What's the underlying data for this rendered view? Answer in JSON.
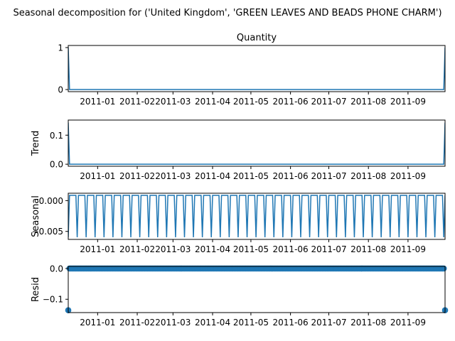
{
  "chart_data": {
    "type": "line",
    "suptitle": "Seasonal decomposition for ('United Kingdom', 'GREEN LEAVES AND BEADS PHONE CHARM')",
    "x_range": [
      "2010-12-09",
      "2011-09-30"
    ],
    "x_tick_labels": [
      "2011-01",
      "2011-02",
      "2011-03",
      "2011-04",
      "2011-05",
      "2011-06",
      "2011-07",
      "2011-08",
      "2011-09"
    ],
    "x_tick_dates": [
      "2011-01-01",
      "2011-02-01",
      "2011-03-01",
      "2011-04-01",
      "2011-05-01",
      "2011-06-01",
      "2011-07-01",
      "2011-08-01",
      "2011-09-01"
    ],
    "line_color": "#1f77b4",
    "panels": [
      {
        "name": "observed",
        "title": "Quantity",
        "ylabel": "",
        "kind": "line",
        "ylim": [
          -0.05,
          1.05
        ],
        "yticks": [
          0,
          1
        ],
        "ytick_labels": [
          "0",
          "1"
        ],
        "description": "1 at first and last date, 0 elsewhere",
        "first_value": 1,
        "middle_value": 0,
        "last_value": 1
      },
      {
        "name": "trend",
        "title": "",
        "ylabel": "Trend",
        "kind": "line",
        "ylim": [
          -0.007,
          0.152
        ],
        "yticks": [
          0.0,
          0.1
        ],
        "ytick_labels": [
          "0.0",
          "0.1"
        ],
        "first_value": 0.143,
        "middle_value": 0.0,
        "last_value": 0.143
      },
      {
        "name": "seasonal",
        "title": "",
        "ylabel": "Seasonal",
        "kind": "line",
        "ylim": [
          -0.0063,
          0.0012
        ],
        "yticks": [
          0.0,
          -0.005
        ],
        "ytick_labels": [
          "0.000",
          "−0.005"
        ],
        "period_days": 7,
        "high_value": 0.00085,
        "low_value": -0.00595
      },
      {
        "name": "resid",
        "title": "",
        "ylabel": "Resid",
        "kind": "scatter",
        "ylim": [
          -0.1433,
          0.0068
        ],
        "yticks": [
          0.0,
          -0.1
        ],
        "ytick_labels": [
          "0.0",
          "−0.1"
        ],
        "first_value": -0.1357,
        "middle_value": 0.0,
        "last_value": -0.1357
      }
    ]
  }
}
